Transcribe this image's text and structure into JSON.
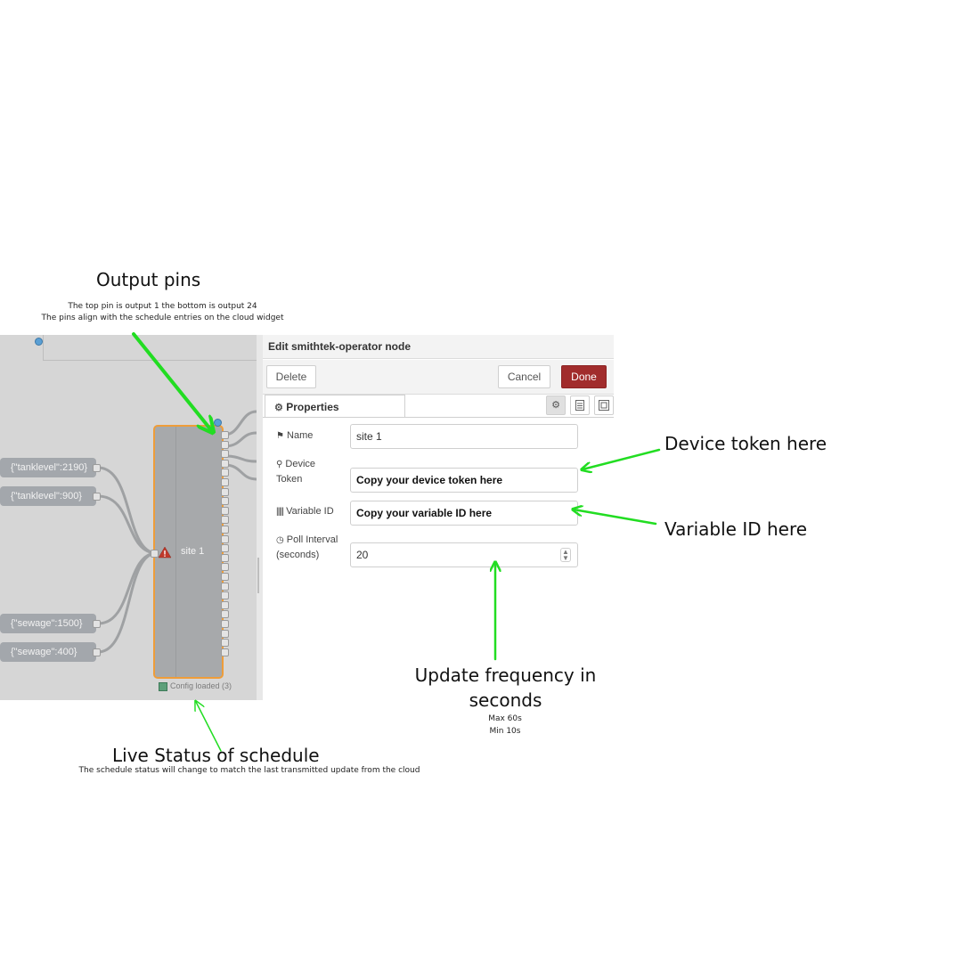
{
  "annotations": {
    "output_pins": {
      "title": "Output pins",
      "line1": "The top pin is output 1 the bottom is output 24",
      "line2": "The pins align with the schedule entries on the  cloud widget"
    },
    "device_token": "Device token here",
    "variable_id": "Variable  ID here",
    "update_frequency": {
      "title_line1": "Update frequency in",
      "title_line2": "seconds",
      "max": "Max 60s",
      "min": "Min 10s"
    },
    "live_status": {
      "title": "Live Status of schedule",
      "subtitle": "The schedule status will change  to match the last transmitted update from the cloud"
    },
    "arrow_color": "#22dd22"
  },
  "canvas": {
    "inject_nodes": [
      {
        "label": "{\"tanklevel\":2190}"
      },
      {
        "label": "{\"tanklevel\":900}"
      },
      {
        "label": "{\"sewage\":1500}"
      },
      {
        "label": "{\"sewage\":400}"
      }
    ],
    "main_node": {
      "label": "site 1",
      "output_count": 24
    },
    "status_text": "Config loaded (3)",
    "colors": {
      "node_border": "#ee9d3a",
      "node_fill": "#a7a9ab",
      "status": "#5da07a"
    }
  },
  "panel": {
    "title": "Edit smithtek-operator node",
    "delete_label": "Delete",
    "cancel_label": "Cancel",
    "done_label": "Done",
    "tab_label": "Properties",
    "fields": {
      "name": {
        "label": "Name",
        "value": "site 1",
        "icon": "tag-icon"
      },
      "device_token": {
        "label_line1": "Device",
        "label_line2": "Token",
        "value": "Copy your device token here",
        "icon": "key-icon"
      },
      "variable_id": {
        "label": "Variable ID",
        "value": "Copy your variable ID here",
        "icon": "barcode-icon"
      },
      "poll_interval": {
        "label_line1": "Poll Interval",
        "label_line2": "(seconds)",
        "value": "20",
        "icon": "clock-icon"
      }
    },
    "colors": {
      "done": "#a12c2c"
    }
  }
}
